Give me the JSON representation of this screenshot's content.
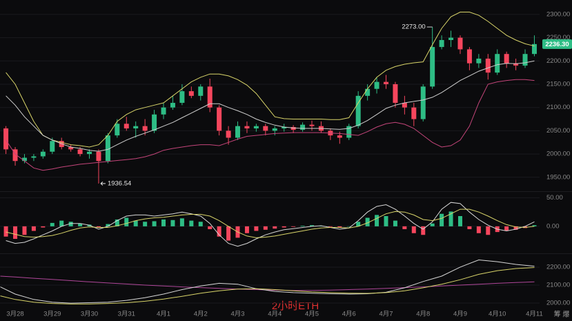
{
  "chart_data": [
    {
      "type": "candlestick",
      "x": [
        -0.25,
        0,
        0.25,
        0.5,
        0.75,
        1,
        1.25,
        1.5,
        1.75,
        2,
        2.25,
        2.5,
        2.75,
        3,
        3.25,
        3.5,
        3.75,
        4,
        4.25,
        4.5,
        4.75,
        5,
        5.25,
        5.5,
        5.75,
        6,
        6.25,
        6.5,
        6.75,
        7,
        7.25,
        7.5,
        7.75,
        8,
        8.25,
        8.5,
        8.75,
        9,
        9.25,
        9.5,
        9.75,
        10,
        10.25,
        10.5,
        10.75,
        11,
        11.25,
        11.5,
        11.75,
        12,
        12.25,
        12.5,
        12.75,
        13,
        13.25,
        13.5,
        13.75,
        14
      ],
      "open": [
        2055,
        2010,
        1985,
        1992,
        1995,
        2005,
        2028,
        2015,
        2010,
        2000,
        2005,
        1985,
        2040,
        2065,
        2055,
        2060,
        2050,
        2085,
        2100,
        2110,
        2135,
        2125,
        2145,
        2100,
        2050,
        2035,
        2060,
        2055,
        2060,
        2050,
        2055,
        2058,
        2052,
        2063,
        2060,
        2050,
        2040,
        2035,
        2060,
        2125,
        2140,
        2155,
        2150,
        2110,
        2100,
        2075,
        2145,
        2230,
        2245,
        2250,
        2225,
        2195,
        2205,
        2175,
        2215,
        2195,
        2190,
        2215
      ],
      "high": [
        2060,
        2015,
        2000,
        2000,
        2010,
        2035,
        2035,
        2020,
        2015,
        2010,
        2010,
        2045,
        2075,
        2080,
        2070,
        2075,
        2095,
        2110,
        2125,
        2150,
        2145,
        2150,
        2162,
        2105,
        2060,
        2070,
        2070,
        2065,
        2065,
        2060,
        2065,
        2062,
        2068,
        2072,
        2070,
        2055,
        2048,
        2065,
        2135,
        2150,
        2165,
        2170,
        2155,
        2125,
        2110,
        2150,
        2273,
        2255,
        2265,
        2255,
        2230,
        2215,
        2215,
        2225,
        2220,
        2205,
        2225,
        2255
      ],
      "low": [
        2000,
        1975,
        1980,
        1985,
        1990,
        2000,
        2010,
        2005,
        1995,
        1990,
        1936.54,
        1980,
        2035,
        2050,
        2035,
        2040,
        2045,
        2075,
        2095,
        2105,
        2120,
        2115,
        2090,
        2040,
        2020,
        2030,
        2045,
        2048,
        2040,
        2040,
        2048,
        2045,
        2048,
        2050,
        2045,
        2030,
        2022,
        2030,
        2055,
        2115,
        2130,
        2140,
        2100,
        2085,
        2060,
        2070,
        2140,
        2225,
        2230,
        2215,
        2180,
        2185,
        2160,
        2170,
        2185,
        2180,
        2185,
        2210
      ],
      "close": [
        2010,
        1985,
        1992,
        1995,
        2005,
        2028,
        2015,
        2010,
        2000,
        2005,
        1985,
        2040,
        2065,
        2055,
        2060,
        2050,
        2085,
        2100,
        2110,
        2135,
        2125,
        2145,
        2100,
        2050,
        2035,
        2060,
        2055,
        2060,
        2050,
        2055,
        2058,
        2052,
        2063,
        2060,
        2050,
        2040,
        2035,
        2060,
        2125,
        2140,
        2155,
        2150,
        2110,
        2100,
        2075,
        2145,
        2230,
        2245,
        2250,
        2225,
        2195,
        2205,
        2175,
        2215,
        2195,
        2190,
        2215,
        2236.3
      ],
      "up_color": "#2ebd85",
      "down_color": "#f6465d",
      "overlays": [
        {
          "color": "#d9d56a",
          "values": [
            2175,
            2150,
            2110,
            2070,
            2040,
            2030,
            2025,
            2020,
            2018,
            2015,
            2020,
            2040,
            2070,
            2085,
            2095,
            2100,
            2105,
            2110,
            2125,
            2140,
            2155,
            2165,
            2172,
            2172,
            2168,
            2160,
            2148,
            2130,
            2105,
            2080,
            2076,
            2075,
            2075,
            2075,
            2075,
            2074,
            2074,
            2078,
            2110,
            2140,
            2165,
            2180,
            2188,
            2193,
            2196,
            2198,
            2235,
            2270,
            2295,
            2305,
            2305,
            2298,
            2285,
            2270,
            2255,
            2245,
            2237,
            2232
          ]
        },
        {
          "color": "#cfcfcf",
          "values": [
            2125,
            2105,
            2080,
            2060,
            2040,
            2030,
            2022,
            2015,
            2012,
            2008,
            2006,
            2010,
            2020,
            2030,
            2038,
            2045,
            2052,
            2060,
            2068,
            2078,
            2088,
            2098,
            2108,
            2108,
            2100,
            2093,
            2085,
            2075,
            2068,
            2062,
            2058,
            2056,
            2055,
            2055,
            2055,
            2054,
            2053,
            2055,
            2062,
            2072,
            2085,
            2098,
            2105,
            2110,
            2113,
            2116,
            2122,
            2132,
            2145,
            2158,
            2168,
            2178,
            2185,
            2192,
            2195,
            2194,
            2196,
            2200
          ]
        },
        {
          "color": "#c4457a",
          "values": [
            2030,
            2000,
            1985,
            1970,
            1965,
            1968,
            1972,
            1975,
            1978,
            1980,
            1982,
            1984,
            1986,
            1988,
            1990,
            1994,
            2000,
            2008,
            2012,
            2015,
            2018,
            2020,
            2020,
            2018,
            2025,
            2032,
            2038,
            2040,
            2042,
            2044,
            2045,
            2046,
            2046,
            2046,
            2046,
            2045,
            2044,
            2042,
            2040,
            2048,
            2058,
            2065,
            2068,
            2064,
            2055,
            2040,
            2025,
            2015,
            2018,
            2030,
            2060,
            2110,
            2150,
            2155,
            2158,
            2160,
            2160,
            2158
          ]
        }
      ],
      "xlim": [
        -0.41,
        14.14
      ],
      "xticks": [
        {
          "value": 0,
          "label": "3月28"
        },
        {
          "value": 1,
          "label": "3月29"
        },
        {
          "value": 2,
          "label": "3月30"
        },
        {
          "value": 3,
          "label": "3月31"
        },
        {
          "value": 4,
          "label": "4月1"
        },
        {
          "value": 5,
          "label": "4月2"
        },
        {
          "value": 6,
          "label": "4月3"
        },
        {
          "value": 7,
          "label": "4月4"
        },
        {
          "value": 8,
          "label": "4月5"
        },
        {
          "value": 9,
          "label": "4月6"
        },
        {
          "value": 10,
          "label": "4月7"
        },
        {
          "value": 11,
          "label": "4月8"
        },
        {
          "value": 12,
          "label": "4月9"
        },
        {
          "value": 13,
          "label": "4月10"
        },
        {
          "value": 14,
          "label": "4月11"
        }
      ],
      "ylim": [
        1923,
        2331
      ],
      "yticks": [
        {
          "value": 2300,
          "label": "2300.00"
        },
        {
          "value": 2250,
          "label": "2250.00"
        },
        {
          "value": 2200,
          "label": "2200.00"
        },
        {
          "value": 2150,
          "label": "2150.00"
        },
        {
          "value": 2100,
          "label": "2100.00"
        },
        {
          "value": 2050,
          "label": "2050.00"
        },
        {
          "value": 2000,
          "label": "2000.00"
        },
        {
          "value": 1950,
          "label": "1950.00"
        }
      ],
      "grid": true,
      "annotations": [
        {
          "x": 11.25,
          "value": 2273,
          "label": "2273.00"
        },
        {
          "x": 2.25,
          "value": 1936.54,
          "label": "1936.54"
        }
      ],
      "last_price": {
        "value": 2236.3,
        "label": "2236.30",
        "color": "#2ebd85"
      },
      "watermark": "2小时ETH",
      "corner_icons": "筹 爆"
    },
    {
      "type": "macd",
      "histogram": [
        -18,
        -22,
        -15,
        -8,
        -2,
        6,
        10,
        8,
        5,
        3,
        -2,
        4,
        12,
        15,
        10,
        8,
        9,
        12,
        11,
        14,
        10,
        8,
        -5,
        -18,
        -25,
        -20,
        -12,
        -8,
        -6,
        -4,
        -2,
        -1,
        1,
        2,
        1,
        -1,
        -2,
        0,
        8,
        15,
        20,
        18,
        10,
        -5,
        -12,
        -15,
        5,
        22,
        26,
        18,
        -5,
        -12,
        -15,
        -10,
        -8,
        -6,
        -3,
        2
      ],
      "up_color": "#2ebd85",
      "down_color": "#f6465d",
      "series": [
        {
          "color": "#d8d8d8",
          "values": [
            -25,
            -30,
            -28,
            -22,
            -15,
            -8,
            0,
            5,
            5,
            2,
            -5,
            0,
            10,
            18,
            20,
            20,
            18,
            20,
            22,
            25,
            22,
            18,
            5,
            -15,
            -30,
            -35,
            -30,
            -22,
            -15,
            -10,
            -6,
            -4,
            -2,
            0,
            1,
            -2,
            -5,
            -3,
            10,
            25,
            35,
            38,
            30,
            18,
            5,
            -5,
            8,
            30,
            42,
            40,
            25,
            12,
            2,
            -5,
            -8,
            -5,
            0,
            8
          ]
        },
        {
          "color": "#d9d56a",
          "values": [
            -10,
            -14,
            -18,
            -19,
            -18,
            -16,
            -12,
            -7,
            -3,
            -1,
            -2,
            -2,
            1,
            5,
            10,
            13,
            15,
            16,
            18,
            20,
            21,
            21,
            18,
            10,
            0,
            -10,
            -17,
            -20,
            -19,
            -17,
            -14,
            -11,
            -8,
            -5,
            -3,
            -2,
            -2,
            -3,
            0,
            6,
            14,
            22,
            26,
            25,
            20,
            12,
            10,
            14,
            22,
            30,
            30,
            25,
            18,
            10,
            3,
            -1,
            -2,
            0
          ]
        }
      ],
      "ylim": [
        -45,
        58
      ],
      "yticks": [
        {
          "value": 50,
          "label": "50.00"
        },
        {
          "value": 0,
          "label": "0.00"
        }
      ]
    },
    {
      "type": "line",
      "x": [
        -0.4,
        0,
        0.5,
        1,
        1.5,
        2,
        2.5,
        3,
        3.5,
        4,
        4.5,
        5,
        5.5,
        6,
        6.5,
        7,
        7.5,
        8,
        8.5,
        9,
        9.5,
        10,
        10.5,
        11,
        11.5,
        12,
        12.5,
        13,
        13.5,
        14
      ],
      "series": [
        {
          "color": "#b0479a",
          "values": [
            2150,
            2145,
            2138,
            2132,
            2125,
            2118,
            2112,
            2106,
            2100,
            2095,
            2090,
            2086,
            2082,
            2078,
            2075,
            2072,
            2070,
            2070,
            2072,
            2075,
            2078,
            2082,
            2086,
            2090,
            2095,
            2100,
            2105,
            2110,
            2114,
            2118
          ]
        },
        {
          "color": "#d8d8d8",
          "values": [
            2090,
            2050,
            2020,
            2005,
            2000,
            2002,
            2005,
            2015,
            2030,
            2050,
            2075,
            2095,
            2110,
            2105,
            2080,
            2065,
            2058,
            2055,
            2052,
            2050,
            2052,
            2060,
            2085,
            2120,
            2150,
            2200,
            2240,
            2230,
            2215,
            2205
          ]
        },
        {
          "color": "#d9d56a",
          "values": [
            2040,
            2020,
            2005,
            1998,
            1995,
            1995,
            1998,
            2002,
            2010,
            2022,
            2038,
            2055,
            2068,
            2078,
            2080,
            2075,
            2068,
            2062,
            2058,
            2055,
            2054,
            2058,
            2068,
            2085,
            2105,
            2130,
            2160,
            2180,
            2192,
            2198
          ]
        }
      ],
      "ylim": [
        1958,
        2265
      ],
      "yticks": [
        {
          "value": 2200,
          "label": "2200.00"
        },
        {
          "value": 2100,
          "label": "2100.00"
        },
        {
          "value": 2000,
          "label": "2000.00"
        }
      ]
    }
  ]
}
